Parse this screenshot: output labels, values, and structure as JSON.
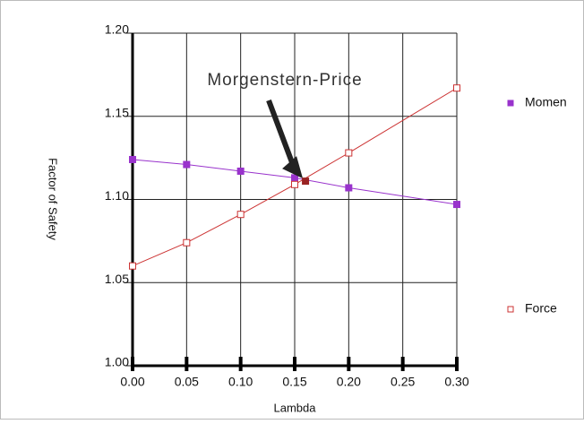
{
  "chart_data": {
    "type": "line",
    "xlabel": "Lambda",
    "ylabel": "Factor of Safety",
    "xlim": [
      0,
      0.3
    ],
    "ylim": [
      1.0,
      1.2
    ],
    "xticks": [
      {
        "value": 0,
        "label": "0.00"
      },
      0.05,
      {
        "value": 0.1,
        "label": "0.10"
      },
      0.15,
      {
        "value": 0.2,
        "label": "0.20"
      },
      0.25,
      {
        "value": 0.3,
        "label": "0.30"
      }
    ],
    "yticks": [
      {
        "value": 1.0,
        "label": "1.00"
      },
      1.05,
      {
        "value": 1.1,
        "label": "1.10"
      },
      1.15,
      {
        "value": 1.2,
        "label": "1.20"
      }
    ],
    "grid": true,
    "series": [
      {
        "name": "Momen",
        "color": "#9933cc",
        "marker": "filled-square",
        "x": [
          0,
          0.05,
          0.1,
          0.15,
          0.2,
          0.3
        ],
        "values": [
          1.124,
          1.121,
          1.117,
          1.113,
          1.107,
          1.097
        ]
      },
      {
        "name": "Force",
        "color": "#cc3333",
        "marker": "open-square",
        "x": [
          0,
          0.05,
          0.1,
          0.15,
          0.2,
          0.3
        ],
        "values": [
          1.06,
          1.074,
          1.091,
          1.109,
          1.128,
          1.167
        ]
      }
    ],
    "annotation": {
      "text": "Morgenstern-Price",
      "x": 0.16,
      "y": 1.111,
      "color": "#992222"
    }
  }
}
